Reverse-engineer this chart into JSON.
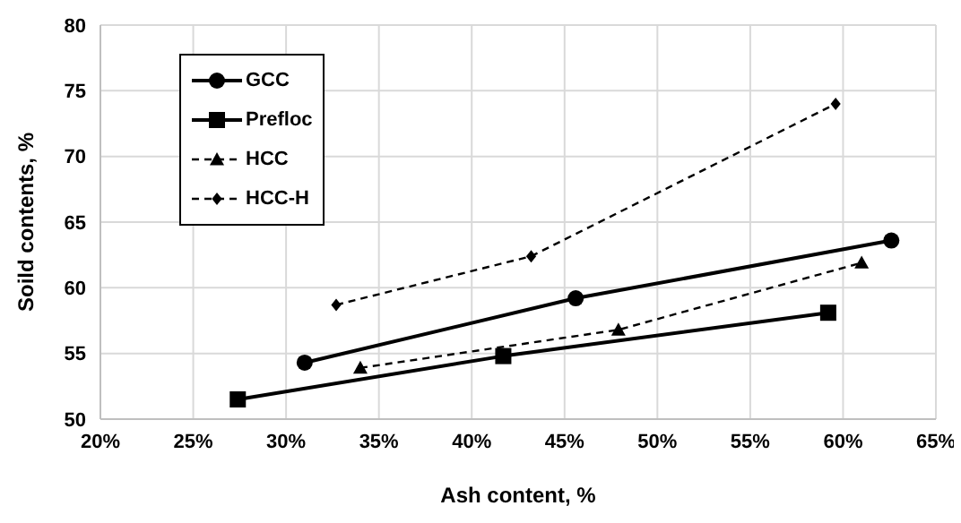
{
  "chart_data": {
    "type": "line",
    "xlabel": "Ash content, %",
    "ylabel": "Soild contents, %",
    "xlim": [
      20,
      65
    ],
    "xticks": [
      {
        "value": 20,
        "label": "20%"
      },
      {
        "value": 25,
        "label": "25%"
      },
      {
        "value": 30,
        "label": "30%"
      },
      {
        "value": 35,
        "label": "35%"
      },
      {
        "value": 40,
        "label": "40%"
      },
      {
        "value": 45,
        "label": "45%"
      },
      {
        "value": 50,
        "label": "50%"
      },
      {
        "value": 55,
        "label": "55%"
      },
      {
        "value": 60,
        "label": "60%"
      },
      {
        "value": 65,
        "label": "65%"
      }
    ],
    "ylim": [
      50,
      80
    ],
    "yticks": [
      50,
      55,
      60,
      65,
      70,
      75,
      80
    ],
    "grid": true,
    "legend": "top left",
    "series": [
      {
        "name": "GCC",
        "color": "#000000",
        "marker": "circle",
        "line_style": "solid",
        "x": [
          31.0,
          45.6,
          62.6
        ],
        "values": [
          54.3,
          59.2,
          63.6
        ]
      },
      {
        "name": "Prefloc",
        "color": "#000000",
        "marker": "square",
        "line_style": "solid",
        "x": [
          27.4,
          41.7,
          59.2
        ],
        "values": [
          51.5,
          54.8,
          58.1
        ]
      },
      {
        "name": "HCC",
        "color": "#000000",
        "marker": "triangle",
        "line_style": "dashed",
        "x": [
          34.0,
          47.9,
          61.0
        ],
        "values": [
          53.9,
          56.8,
          61.9
        ]
      },
      {
        "name": "HCC-H",
        "color": "#000000",
        "marker": "diamond",
        "line_style": "dashed",
        "x": [
          32.7,
          43.2,
          59.6
        ],
        "values": [
          58.7,
          62.4,
          74.0
        ]
      }
    ]
  }
}
